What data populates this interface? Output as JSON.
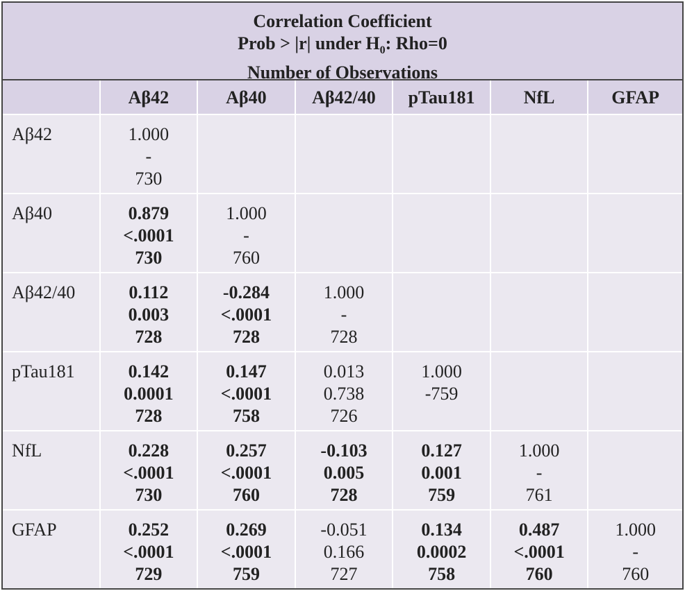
{
  "caption": {
    "line1": "Correlation Coefficient",
    "line2_prefix": "Prob > |r| under H",
    "line2_sub": "0",
    "line2_suffix": ":  Rho=0",
    "line3": "Number of Observations"
  },
  "columns": [
    "",
    "Aβ42",
    "Aβ40",
    "Aβ42/40",
    "pTau181",
    "NfL",
    "GFAP"
  ],
  "rows": [
    {
      "label": "Aβ42",
      "cells": [
        {
          "lines": [
            "1.000",
            "-",
            "730"
          ],
          "bold": false
        },
        null,
        null,
        null,
        null,
        null
      ]
    },
    {
      "label": "Aβ40",
      "cells": [
        {
          "lines": [
            "0.879",
            "<.0001",
            "730"
          ],
          "bold": true
        },
        {
          "lines": [
            "1.000",
            "-",
            "760"
          ],
          "bold": false
        },
        null,
        null,
        null,
        null
      ]
    },
    {
      "label": "Aβ42/40",
      "cells": [
        {
          "lines": [
            "0.112",
            "0.003",
            "728"
          ],
          "bold": true
        },
        {
          "lines": [
            "-0.284",
            "<.0001",
            "728"
          ],
          "bold": true
        },
        {
          "lines": [
            "1.000",
            "-",
            "728"
          ],
          "bold": false
        },
        null,
        null,
        null
      ]
    },
    {
      "label": "pTau181",
      "cells": [
        {
          "lines": [
            "0.142",
            "0.0001",
            "728"
          ],
          "bold": true
        },
        {
          "lines": [
            "0.147",
            "<.0001",
            "758"
          ],
          "bold": true
        },
        {
          "lines": [
            "0.013",
            "0.738",
            "726"
          ],
          "bold": false
        },
        {
          "lines": [
            "1.000",
            "-759"
          ],
          "bold": false
        },
        null,
        null
      ]
    },
    {
      "label": "NfL",
      "cells": [
        {
          "lines": [
            "0.228",
            "<.0001",
            "730"
          ],
          "bold": true
        },
        {
          "lines": [
            "0.257",
            "<.0001",
            "760"
          ],
          "bold": true
        },
        {
          "lines": [
            "-0.103",
            "0.005",
            "728"
          ],
          "bold": true
        },
        {
          "lines": [
            "0.127",
            "0.001",
            "759"
          ],
          "bold": true
        },
        {
          "lines": [
            "1.000",
            "-",
            "761"
          ],
          "bold": false
        },
        null
      ]
    },
    {
      "label": "GFAP",
      "cells": [
        {
          "lines": [
            "0.252",
            "<.0001",
            "729"
          ],
          "bold": true
        },
        {
          "lines": [
            "0.269",
            "<.0001",
            "759"
          ],
          "bold": true
        },
        {
          "lines": [
            "-0.051",
            "0.166",
            "727"
          ],
          "bold": false
        },
        {
          "lines": [
            "0.134",
            "0.0002",
            "758"
          ],
          "bold": true
        },
        {
          "lines": [
            "0.487",
            "<.0001",
            "760"
          ],
          "bold": true
        },
        {
          "lines": [
            "1.000",
            "-",
            "760"
          ],
          "bold": false
        }
      ]
    }
  ]
}
